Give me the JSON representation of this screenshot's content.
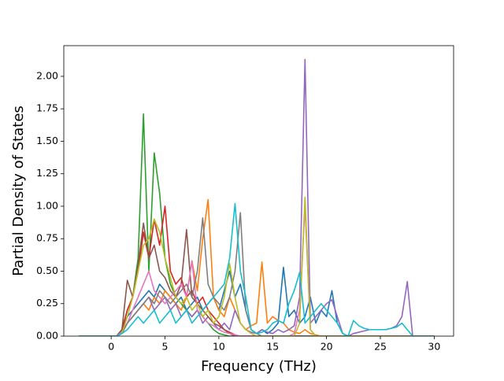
{
  "chart_data": {
    "type": "line",
    "x_label": "Frequency (THz)",
    "y_label": "Partial Density of States",
    "xlim": [
      -4.4,
      31.8
    ],
    "ylim": [
      0,
      2.236
    ],
    "xticks": [
      0,
      5,
      10,
      15,
      20,
      25,
      30
    ],
    "yticks": [
      {
        "value": 0,
        "label": "0.00"
      },
      {
        "value": 0.25,
        "label": "0.25"
      },
      {
        "value": 0.5,
        "label": "0.50"
      },
      {
        "value": 0.75,
        "label": "0.75"
      },
      {
        "value": 1,
        "label": "1.00"
      },
      {
        "value": 1.25,
        "label": "1.25"
      },
      {
        "value": 1.5,
        "label": "1.50"
      },
      {
        "value": 1.75,
        "label": "1.75"
      },
      {
        "value": 2,
        "label": "2.00"
      }
    ],
    "grid": false,
    "x": [
      -3,
      -2.5,
      -2,
      -1.5,
      -1,
      -0.5,
      0,
      0.5,
      1,
      1.5,
      2,
      2.5,
      3,
      3.5,
      4,
      4.5,
      5,
      5.5,
      6,
      6.5,
      7,
      7.5,
      8,
      8.5,
      9,
      9.5,
      10,
      10.5,
      11,
      11.5,
      12,
      12.5,
      13,
      13.5,
      14,
      14.5,
      15,
      15.5,
      16,
      16.5,
      17,
      17.5,
      18,
      18.5,
      19,
      19.5,
      20,
      20.5,
      21,
      21.5,
      22,
      22.5,
      23,
      23.5,
      24,
      24.5,
      25,
      25.5,
      26,
      26.5,
      27,
      27.5,
      28,
      28.5,
      29,
      29.5,
      30
    ],
    "series": [
      {
        "color": "#1f77b4",
        "values": [
          0,
          0,
          0,
          0,
          0,
          0,
          0,
          0,
          0.05,
          0.15,
          0.2,
          0.25,
          0.3,
          0.35,
          0.3,
          0.4,
          0.35,
          0.3,
          0.25,
          0.3,
          0.2,
          0.25,
          0.3,
          0.2,
          0.25,
          0.3,
          0.2,
          0.35,
          0.5,
          0.3,
          0.4,
          0.2,
          0.05,
          0.02,
          0.05,
          0.02,
          0.05,
          0.1,
          0.53,
          0.15,
          0.2,
          0.1,
          0.15,
          0.3,
          0.1,
          0.2,
          0.15,
          0.35,
          0.1,
          0.02,
          0,
          0,
          0,
          0,
          0,
          0,
          0,
          0,
          0,
          0,
          0,
          0,
          0,
          0,
          0,
          0,
          0
        ]
      },
      {
        "color": "#ff7f0e",
        "values": [
          0,
          0,
          0,
          0,
          0,
          0,
          0,
          0,
          0.03,
          0.1,
          0.15,
          0.2,
          0.25,
          0.2,
          0.3,
          0.25,
          0.35,
          0.3,
          0.25,
          0.2,
          0.3,
          0.58,
          0.35,
          0.75,
          1.05,
          0.3,
          0.2,
          0.15,
          0.3,
          0.2,
          0.1,
          0.05,
          0.08,
          0.1,
          0.57,
          0.1,
          0.15,
          0.12,
          0.1,
          0.05,
          0.03,
          0.02,
          0.05,
          0.02,
          0.01,
          0,
          0,
          0,
          0,
          0,
          0,
          0,
          0,
          0,
          0,
          0,
          0,
          0,
          0,
          0,
          0,
          0,
          0,
          0,
          0,
          0,
          0
        ]
      },
      {
        "color": "#2ca02c",
        "values": [
          0,
          0,
          0,
          0,
          0,
          0,
          0,
          0,
          0.05,
          0.2,
          0.3,
          0.6,
          1.71,
          0.5,
          1.41,
          1.1,
          0.6,
          0.4,
          0.3,
          0.25,
          0.2,
          0.15,
          0.2,
          0.15,
          0.1,
          0.05,
          0.02,
          0.01,
          0,
          0,
          0,
          0,
          0,
          0,
          0,
          0,
          0,
          0,
          0,
          0,
          0,
          0,
          0,
          0,
          0,
          0,
          0,
          0,
          0,
          0,
          0,
          0,
          0,
          0,
          0,
          0,
          0,
          0,
          0,
          0,
          0,
          0,
          0,
          0,
          0,
          0,
          0
        ]
      },
      {
        "color": "#d62728",
        "values": [
          0,
          0,
          0,
          0,
          0,
          0,
          0,
          0,
          0.05,
          0.2,
          0.3,
          0.5,
          0.8,
          0.6,
          0.9,
          0.7,
          1.0,
          0.5,
          0.4,
          0.45,
          0.3,
          0.35,
          0.25,
          0.3,
          0.2,
          0.15,
          0.1,
          0.05,
          0.03,
          0.01,
          0,
          0,
          0,
          0,
          0,
          0,
          0,
          0,
          0,
          0,
          0,
          0,
          0,
          0,
          0,
          0,
          0,
          0,
          0,
          0,
          0,
          0,
          0,
          0,
          0,
          0,
          0,
          0,
          0,
          0,
          0,
          0,
          0,
          0,
          0,
          0,
          0
        ]
      },
      {
        "color": "#9467bd",
        "values": [
          0,
          0,
          0,
          0,
          0,
          0,
          0,
          0,
          0.02,
          0.1,
          0.15,
          0.2,
          0.25,
          0.3,
          0.2,
          0.25,
          0.3,
          0.2,
          0.25,
          0.15,
          0.2,
          0.15,
          0.2,
          0.1,
          0.15,
          0.1,
          0.05,
          0.1,
          0.05,
          0.2,
          0.1,
          0.05,
          0.03,
          0.02,
          0.05,
          0.03,
          0.02,
          0.05,
          0.03,
          0.05,
          0.08,
          0.3,
          2.13,
          0.1,
          0.15,
          0.2,
          0.25,
          0.28,
          0.15,
          0.02,
          0,
          0.02,
          0.03,
          0.04,
          0.05,
          0.05,
          0.05,
          0.05,
          0.06,
          0.08,
          0.15,
          0.42,
          0,
          0,
          0,
          0,
          0
        ]
      },
      {
        "color": "#8c564b",
        "values": [
          0,
          0,
          0,
          0,
          0,
          0,
          0,
          0,
          0.05,
          0.43,
          0.3,
          0.55,
          0.87,
          0.6,
          0.7,
          0.5,
          0.45,
          0.35,
          0.3,
          0.4,
          0.82,
          0.3,
          0.25,
          0.2,
          0.15,
          0.1,
          0.08,
          0.05,
          0.02,
          0,
          0,
          0,
          0,
          0,
          0,
          0,
          0,
          0,
          0,
          0,
          0,
          0,
          0,
          0,
          0,
          0,
          0,
          0,
          0,
          0,
          0,
          0,
          0,
          0,
          0,
          0,
          0,
          0,
          0,
          0,
          0,
          0,
          0,
          0,
          0,
          0,
          0
        ]
      },
      {
        "color": "#e377c2",
        "values": [
          0,
          0,
          0,
          0,
          0,
          0,
          0,
          0,
          0.03,
          0.1,
          0.2,
          0.3,
          0.4,
          0.5,
          0.35,
          0.3,
          0.25,
          0.3,
          0.35,
          0.4,
          0.3,
          0.58,
          0.2,
          0.15,
          0.1,
          0.08,
          0.05,
          0.03,
          0.02,
          0.01,
          0,
          0,
          0,
          0,
          0,
          0,
          0,
          0,
          0,
          0,
          0.02,
          0.2,
          1.0,
          0.05,
          0,
          0,
          0,
          0,
          0,
          0,
          0,
          0,
          0,
          0,
          0,
          0,
          0,
          0,
          0,
          0,
          0,
          0,
          0,
          0,
          0,
          0,
          0
        ]
      },
      {
        "color": "#7f7f7f",
        "values": [
          0,
          0,
          0,
          0,
          0,
          0,
          0,
          0,
          0.02,
          0.1,
          0.15,
          0.2,
          0.25,
          0.3,
          0.25,
          0.35,
          0.3,
          0.25,
          0.3,
          0.35,
          0.4,
          0.3,
          0.5,
          0.91,
          0.4,
          0.3,
          0.25,
          0.2,
          0.3,
          0.5,
          0.95,
          0.2,
          0.05,
          0.02,
          0,
          0,
          0,
          0,
          0,
          0,
          0,
          0,
          0,
          0,
          0,
          0,
          0,
          0,
          0,
          0,
          0,
          0,
          0,
          0,
          0,
          0,
          0,
          0,
          0,
          0,
          0,
          0,
          0,
          0,
          0,
          0,
          0
        ]
      },
      {
        "color": "#bcbd22",
        "values": [
          0,
          0,
          0,
          0,
          0,
          0,
          0,
          0,
          0.02,
          0.15,
          0.3,
          0.5,
          0.7,
          0.75,
          0.9,
          0.8,
          0.6,
          0.45,
          0.3,
          0.25,
          0.3,
          0.2,
          0.25,
          0.15,
          0.2,
          0.1,
          0.15,
          0.3,
          0.56,
          0.3,
          0.1,
          0.05,
          0.02,
          0,
          0,
          0,
          0,
          0,
          0,
          0,
          0,
          0.1,
          1.07,
          0.05,
          0,
          0,
          0,
          0,
          0,
          0,
          0,
          0,
          0,
          0,
          0,
          0,
          0,
          0,
          0,
          0,
          0,
          0,
          0,
          0,
          0,
          0,
          0
        ]
      },
      {
        "color": "#17becf",
        "values": [
          0,
          0,
          0,
          0,
          0,
          0,
          0,
          0,
          0.02,
          0.05,
          0.1,
          0.15,
          0.1,
          0.15,
          0.2,
          0.1,
          0.15,
          0.2,
          0.1,
          0.15,
          0.2,
          0.1,
          0.15,
          0.2,
          0.25,
          0.3,
          0.35,
          0.4,
          0.6,
          1.02,
          0.5,
          0.3,
          0.05,
          0.02,
          0.03,
          0.05,
          0.1,
          0.12,
          0.1,
          0.25,
          0.35,
          0.49,
          0.1,
          0.15,
          0.2,
          0.25,
          0.2,
          0.15,
          0.1,
          0.02,
          0,
          0.12,
          0.08,
          0.06,
          0.05,
          0.05,
          0.05,
          0.05,
          0.06,
          0.07,
          0.1,
          0.05,
          0,
          0,
          0,
          0,
          0
        ]
      }
    ]
  }
}
